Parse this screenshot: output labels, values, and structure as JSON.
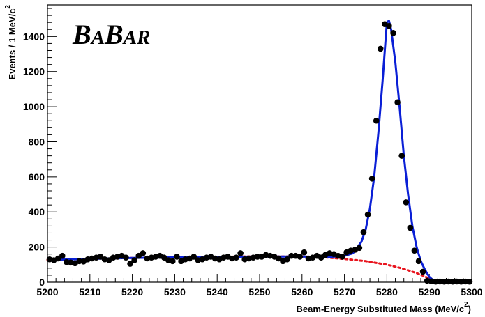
{
  "chart_data": {
    "type": "scatter",
    "title": "",
    "logo": {
      "text_big1": "B",
      "text_small1": "A",
      "text_big2": "B",
      "text_small2": "AR"
    },
    "xlabel": "Beam-Energy Substituted Mass (MeV/c",
    "xlabel_sup": "2",
    "xlabel_tail": ")",
    "ylabel": "Events / 1 MeV/c",
    "ylabel_sup": "2",
    "xlim": [
      5200,
      5300
    ],
    "ylim": [
      0,
      1580
    ],
    "x_ticks": [
      5200,
      5210,
      5220,
      5230,
      5240,
      5250,
      5260,
      5270,
      5280,
      5290,
      5300
    ],
    "y_ticks": [
      0,
      200,
      400,
      600,
      800,
      1000,
      1200,
      1400
    ],
    "grid": false,
    "series": [
      {
        "kind": "points",
        "color": "#000000",
        "x": [
          5200.5,
          5201.5,
          5202.5,
          5203.5,
          5204.5,
          5205.5,
          5206.5,
          5207.5,
          5208.5,
          5209.5,
          5210.5,
          5211.5,
          5212.5,
          5213.5,
          5214.5,
          5215.5,
          5216.5,
          5217.5,
          5218.5,
          5219.5,
          5220.5,
          5221.5,
          5222.5,
          5223.5,
          5224.5,
          5225.5,
          5226.5,
          5227.5,
          5228.5,
          5229.5,
          5230.5,
          5231.5,
          5232.5,
          5233.5,
          5234.5,
          5235.5,
          5236.5,
          5237.5,
          5238.5,
          5239.5,
          5240.5,
          5241.5,
          5242.5,
          5243.5,
          5244.5,
          5245.5,
          5246.5,
          5247.5,
          5248.5,
          5249.5,
          5250.5,
          5251.5,
          5252.5,
          5253.5,
          5254.5,
          5255.5,
          5256.5,
          5257.5,
          5258.5,
          5259.5,
          5260.5,
          5261.5,
          5262.5,
          5263.5,
          5264.5,
          5265.5,
          5266.5,
          5267.5,
          5268.5,
          5269.5,
          5270.5,
          5271.5,
          5272.5,
          5273.5,
          5274.5,
          5275.5,
          5276.5,
          5277.5,
          5278.5,
          5279.5,
          5280.5,
          5281.5,
          5282.5,
          5283.5,
          5284.5,
          5285.5,
          5286.5,
          5287.5,
          5288.5,
          5289.5,
          5290.5,
          5291.5,
          5292.5,
          5293.5,
          5294.5,
          5295.5,
          5296.5,
          5297.5,
          5298.5,
          5299.5
        ],
        "y": [
          130,
          125,
          135,
          150,
          115,
          112,
          108,
          120,
          118,
          130,
          135,
          140,
          145,
          130,
          125,
          140,
          145,
          150,
          140,
          105,
          125,
          150,
          165,
          135,
          140,
          145,
          150,
          140,
          125,
          120,
          145,
          120,
          130,
          135,
          145,
          125,
          130,
          140,
          145,
          135,
          130,
          140,
          145,
          135,
          140,
          165,
          130,
          135,
          140,
          145,
          145,
          155,
          150,
          145,
          135,
          120,
          130,
          150,
          150,
          145,
          170,
          135,
          140,
          150,
          140,
          155,
          165,
          160,
          150,
          145,
          170,
          180,
          185,
          195,
          285,
          385,
          590,
          920,
          1330,
          1470,
          1460,
          1420,
          1025,
          720,
          455,
          310,
          180,
          120,
          60,
          8,
          5,
          3,
          4,
          3,
          4,
          3,
          4,
          3,
          4,
          3
        ]
      },
      {
        "kind": "line",
        "name": "",
        "color": "#0a1fd6",
        "style": "solid",
        "x": [
          5200,
          5210,
          5220,
          5230,
          5240,
          5250,
          5260,
          5266,
          5270,
          5272,
          5274,
          5275,
          5276,
          5277,
          5278,
          5279,
          5279.5,
          5280,
          5280.5,
          5281,
          5282,
          5283,
          5284,
          5285,
          5286,
          5287,
          5288,
          5289,
          5290,
          5291,
          5292,
          5300
        ],
        "y": [
          127,
          133,
          138,
          142,
          144,
          146,
          146,
          143,
          150,
          165,
          230,
          300,
          420,
          600,
          850,
          1150,
          1320,
          1480,
          1490,
          1440,
          1250,
          1000,
          720,
          500,
          320,
          200,
          120,
          70,
          30,
          10,
          5,
          4
        ]
      },
      {
        "kind": "line",
        "name": "",
        "color": "#e8141e",
        "style": "dotted",
        "x": [
          5200,
          5210,
          5220,
          5230,
          5240,
          5250,
          5260,
          5265,
          5270,
          5275,
          5280,
          5283,
          5285,
          5287,
          5289,
          5290,
          5291,
          5292,
          5300
        ],
        "y": [
          127,
          133,
          138,
          142,
          145,
          147,
          146,
          142,
          132,
          120,
          100,
          82,
          68,
          52,
          32,
          20,
          10,
          5,
          4
        ]
      }
    ]
  }
}
